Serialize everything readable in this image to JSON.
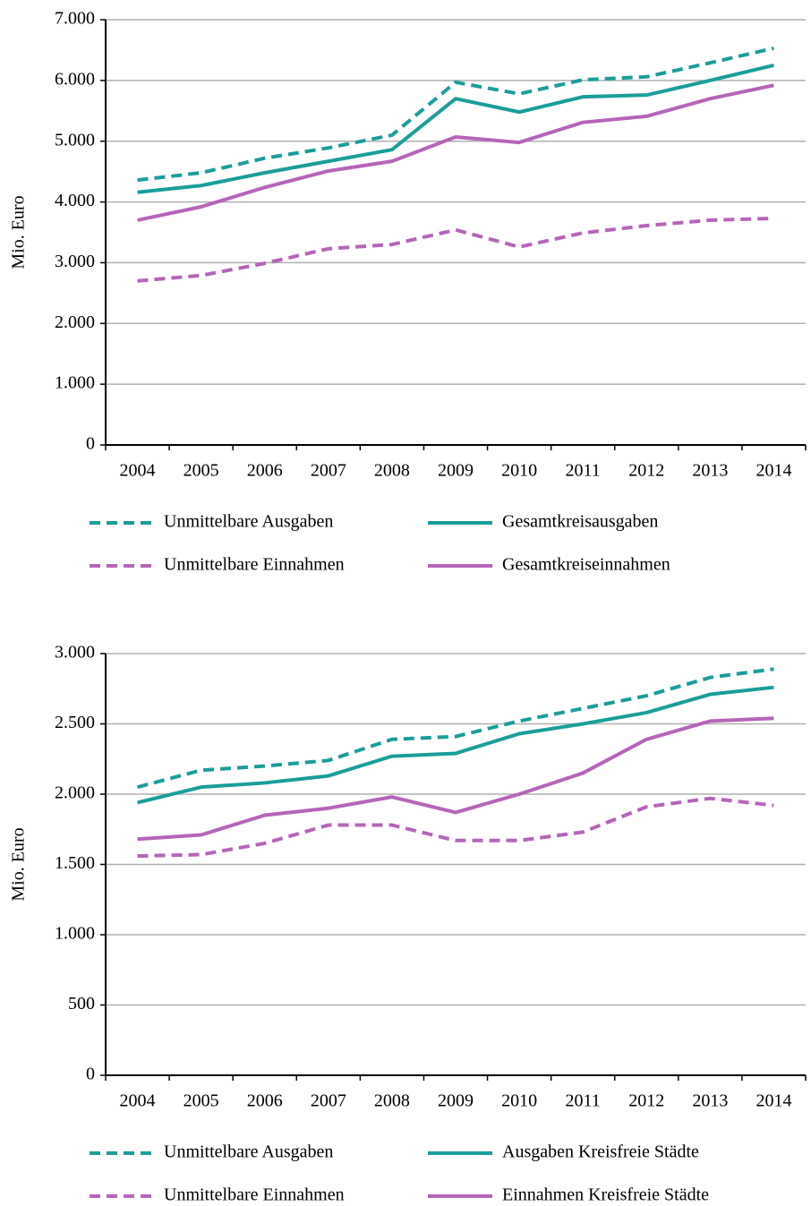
{
  "chart_data": [
    {
      "type": "line",
      "y_label": "Mio. Euro",
      "categories": [
        "2004",
        "2005",
        "2006",
        "2007",
        "2008",
        "2009",
        "2010",
        "2011",
        "2012",
        "2013",
        "2014"
      ],
      "ylim": [
        0,
        7000
      ],
      "yticks": [
        0,
        {
          "value": 1000,
          "label": "1.000"
        },
        {
          "value": 2000,
          "label": "2.000"
        },
        {
          "value": 3000,
          "label": "3.000"
        },
        {
          "value": 4000,
          "label": "4.000"
        },
        {
          "value": 5000,
          "label": "5.000"
        },
        {
          "value": 6000,
          "label": "6.000"
        },
        {
          "value": 7000,
          "label": "7.000"
        }
      ],
      "grid": true,
      "series": [
        {
          "name": "Unmittelbare Ausgaben",
          "color": "#1a9e9a",
          "dashed": true,
          "values": [
            4360,
            4480,
            4720,
            4890,
            5100,
            5970,
            5780,
            6010,
            6060,
            6290,
            6530
          ]
        },
        {
          "name": "Gesamtkreisausgaben",
          "color": "#1a9e9a",
          "dashed": false,
          "values": [
            4160,
            4270,
            4480,
            4670,
            4860,
            5700,
            5480,
            5730,
            5760,
            6000,
            6250
          ]
        },
        {
          "name": "Unmittelbare Einnahmen",
          "color": "#b565b8",
          "dashed": true,
          "values": [
            2700,
            2790,
            2990,
            3230,
            3300,
            3540,
            3260,
            3490,
            3610,
            3700,
            3730
          ]
        },
        {
          "name": "Gesamtkreiseinnahmen",
          "color": "#b565b8",
          "dashed": false,
          "values": [
            3700,
            3920,
            4240,
            4510,
            4670,
            5070,
            4980,
            5310,
            5410,
            5700,
            5920
          ]
        }
      ]
    },
    {
      "type": "line",
      "y_label": "Mio. Euro",
      "categories": [
        "2004",
        "2005",
        "2006",
        "2007",
        "2008",
        "2009",
        "2010",
        "2011",
        "2012",
        "2013",
        "2014"
      ],
      "ylim": [
        0,
        3000
      ],
      "yticks": [
        0,
        500,
        {
          "value": 1000,
          "label": "1.000"
        },
        {
          "value": 1500,
          "label": "1.500"
        },
        {
          "value": 2000,
          "label": "2.000"
        },
        {
          "value": 2500,
          "label": "2.500"
        },
        {
          "value": 3000,
          "label": "3.000"
        }
      ],
      "grid": true,
      "series": [
        {
          "name": "Unmittelbare Ausgaben",
          "color": "#1a9e9a",
          "dashed": true,
          "values": [
            2050,
            2170,
            2200,
            2240,
            2390,
            2410,
            2520,
            2610,
            2700,
            2830,
            2890
          ]
        },
        {
          "name": "Ausgaben Kreisfreie Städte",
          "color": "#1a9e9a",
          "dashed": false,
          "values": [
            1940,
            2050,
            2080,
            2130,
            2270,
            2290,
            2430,
            2500,
            2580,
            2710,
            2760
          ]
        },
        {
          "name": "Unmittelbare Einnahmen",
          "color": "#b565b8",
          "dashed": true,
          "values": [
            1560,
            1570,
            1650,
            1780,
            1780,
            1670,
            1670,
            1730,
            1910,
            1970,
            1920
          ]
        },
        {
          "name": "Einnahmen Kreisfreie Städte",
          "color": "#b565b8",
          "dashed": false,
          "values": [
            1680,
            1710,
            1850,
            1900,
            1980,
            1870,
            2000,
            2150,
            2390,
            2520,
            2540
          ]
        }
      ]
    }
  ]
}
